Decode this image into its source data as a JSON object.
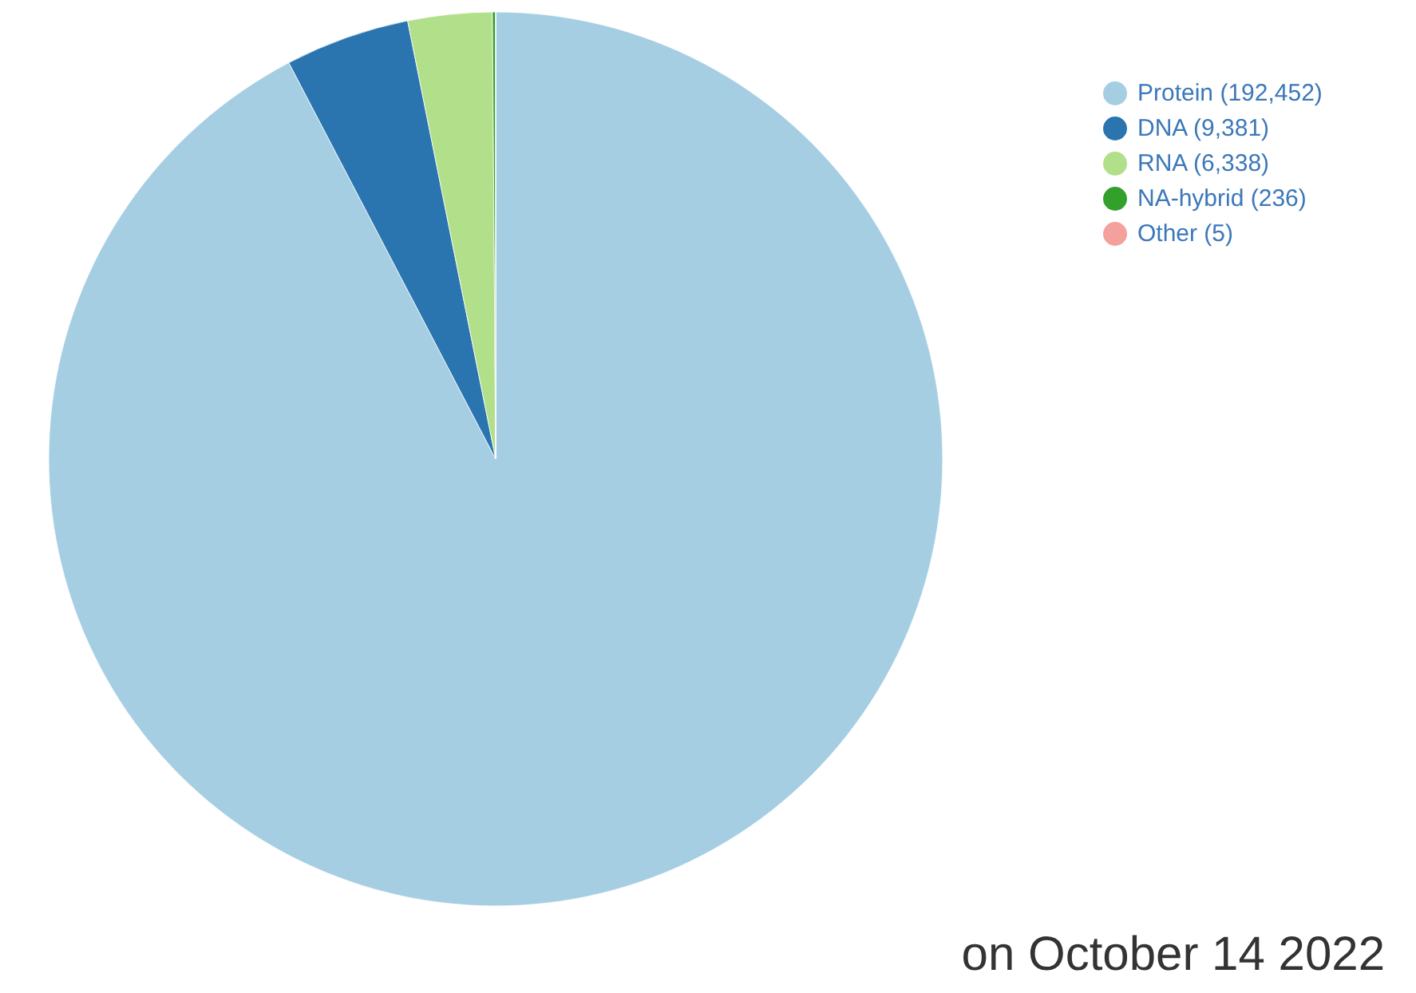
{
  "chart_data": {
    "type": "pie",
    "categories": [
      "Protein (192,452)",
      "DNA (9,381)",
      "RNA (6,338)",
      "NA-hybrid (236)",
      "Other (5)"
    ],
    "values": [
      192452,
      9381,
      6338,
      236,
      5
    ],
    "colors": [
      "#a6cee3",
      "#2a75b0",
      "#b2df8a",
      "#33a02c",
      "#f4a09c"
    ],
    "legend": "top right",
    "annotations": [
      "on October 14 2022"
    ]
  }
}
